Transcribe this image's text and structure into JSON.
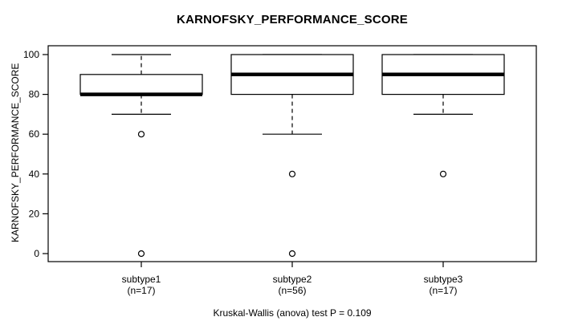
{
  "title": "KARNOFSKY_PERFORMANCE_SCORE",
  "chart_data": {
    "type": "boxplot",
    "title": "KARNOFSKY_PERFORMANCE_SCORE",
    "ylabel": "KARNOFSKY_PERFORMANCE_SCORE",
    "xlabel": "",
    "annotation": "Kruskal-Wallis (anova) test P = 0.109",
    "ylim": [
      0,
      100
    ],
    "yticks": [
      0,
      20,
      40,
      60,
      80,
      100
    ],
    "grid": false,
    "legend": false,
    "categories": [
      "subtype1",
      "subtype2",
      "subtype3"
    ],
    "category_sublabels": [
      "(n=17)",
      "(n=56)",
      "(n=17)"
    ],
    "series": [
      {
        "name": "subtype1",
        "n": 17,
        "whisker_low": 70,
        "q1": 80,
        "median": 80,
        "q3": 90,
        "whisker_high": 100,
        "outliers": [
          60,
          0
        ]
      },
      {
        "name": "subtype2",
        "n": 56,
        "whisker_low": 60,
        "q1": 80,
        "median": 90,
        "q3": 100,
        "whisker_high": 100,
        "outliers": [
          40,
          0
        ]
      },
      {
        "name": "subtype3",
        "n": 17,
        "whisker_low": 70,
        "q1": 80,
        "median": 90,
        "q3": 100,
        "whisker_high": 100,
        "outliers": [
          40
        ]
      }
    ],
    "colors": {
      "line": "#000000",
      "box_fill": "#ffffff",
      "background": "#ffffff"
    }
  }
}
